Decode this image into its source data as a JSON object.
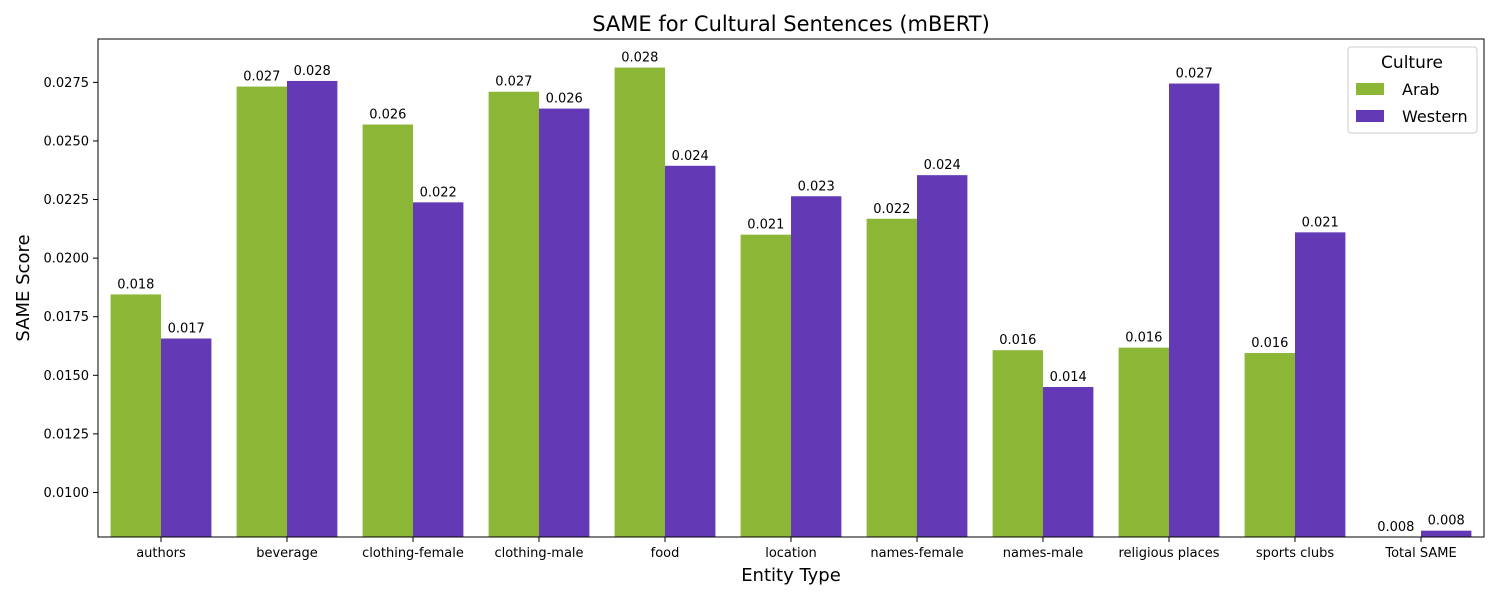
{
  "chart_data": {
    "type": "bar",
    "title": "SAME for Cultural Sentences (mBERT)",
    "xlabel": "Entity Type",
    "ylabel": "SAME Score",
    "categories": [
      "authors",
      "beverage",
      "clothing-female",
      "clothing-male",
      "food",
      "location",
      "names-female",
      "names-male",
      "religious places",
      "sports clubs",
      "Total SAME"
    ],
    "series": [
      {
        "name": "Arab",
        "color": "#8cb636",
        "values": [
          0.01845,
          0.02732,
          0.0257,
          0.0271,
          0.02813,
          0.021,
          0.02168,
          0.01607,
          0.01618,
          0.01595,
          0.008
        ],
        "labels": [
          "0.018",
          "0.027",
          "0.026",
          "0.027",
          "0.028",
          "0.021",
          "0.022",
          "0.016",
          "0.016",
          "0.016",
          "0.008"
        ]
      },
      {
        "name": "Western",
        "color": "#6439b6",
        "values": [
          0.01657,
          0.02756,
          0.02238,
          0.02638,
          0.02394,
          0.02264,
          0.02354,
          0.0145,
          0.02745,
          0.0211,
          0.00837
        ],
        "labels": [
          "0.017",
          "0.028",
          "0.022",
          "0.026",
          "0.024",
          "0.023",
          "0.024",
          "0.014",
          "0.027",
          "0.021",
          "0.008"
        ]
      }
    ],
    "ylim": [
      0.0081,
      0.02935
    ],
    "yticks": [
      "0.0100",
      "0.0125",
      "0.0150",
      "0.0175",
      "0.0200",
      "0.0225",
      "0.0250",
      "0.0275"
    ],
    "legend": {
      "title": "Culture",
      "position": "top-right"
    },
    "grid": false
  }
}
